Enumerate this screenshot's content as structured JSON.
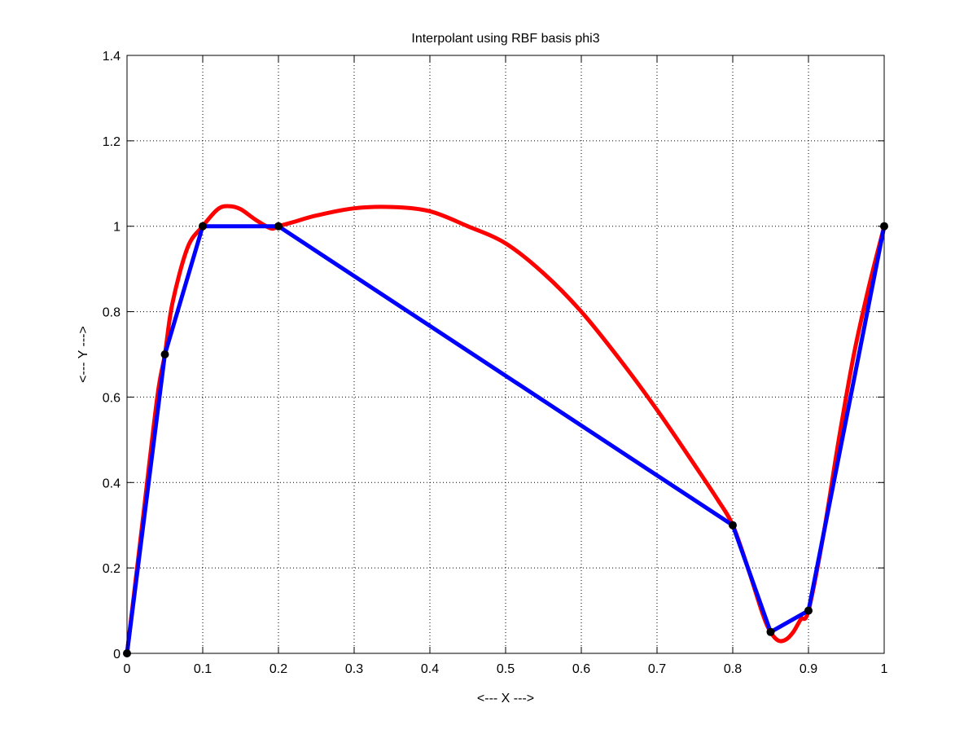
{
  "chart_data": {
    "type": "line",
    "title": "Interpolant using RBF basis phi3",
    "xlabel": "<--- X --->",
    "ylabel": "<--- Y --->",
    "xlim": [
      0,
      1
    ],
    "ylim": [
      0,
      1.4
    ],
    "xticks": [
      0,
      0.1,
      0.2,
      0.3,
      0.4,
      0.5,
      0.6,
      0.7,
      0.8,
      0.9,
      1
    ],
    "xtick_labels": [
      "0",
      "0.1",
      "0.2",
      "0.3",
      "0.4",
      "0.5",
      "0.6",
      "0.7",
      "0.8",
      "0.9",
      "1"
    ],
    "yticks": [
      0,
      0.2,
      0.4,
      0.6,
      0.8,
      1,
      1.2,
      1.4
    ],
    "ytick_labels": [
      "0",
      "0.2",
      "0.4",
      "0.6",
      "0.8",
      "1",
      "1.2",
      "1.4"
    ],
    "grid": true,
    "series": [
      {
        "style": "interpolant-curve",
        "color": "#ff0000",
        "x": [
          0,
          0.02,
          0.04,
          0.05,
          0.06,
          0.08,
          0.1,
          0.12,
          0.135,
          0.15,
          0.17,
          0.19,
          0.2,
          0.22,
          0.25,
          0.3,
          0.35,
          0.4,
          0.45,
          0.5,
          0.55,
          0.6,
          0.65,
          0.7,
          0.75,
          0.78,
          0.8,
          0.82,
          0.84,
          0.85,
          0.86,
          0.87,
          0.88,
          0.89,
          0.9,
          0.92,
          0.94,
          0.96,
          0.98,
          1
        ],
        "y": [
          0,
          0.3,
          0.6,
          0.7,
          0.82,
          0.95,
          1.0,
          1.04,
          1.047,
          1.04,
          1.015,
          0.995,
          1.0,
          1.01,
          1.025,
          1.042,
          1.045,
          1.035,
          1.0,
          0.96,
          0.89,
          0.8,
          0.69,
          0.57,
          0.44,
          0.36,
          0.3,
          0.2,
          0.09,
          0.05,
          0.03,
          0.032,
          0.05,
          0.08,
          0.1,
          0.28,
          0.5,
          0.7,
          0.86,
          1.0
        ]
      },
      {
        "style": "piecewise-linear",
        "color": "#0000ff",
        "x": [
          0,
          0.05,
          0.1,
          0.2,
          0.8,
          0.85,
          0.9,
          1
        ],
        "y": [
          0,
          0.7,
          1,
          1,
          0.3,
          0.05,
          0.1,
          1
        ]
      }
    ],
    "points": {
      "color": "#000000",
      "x": [
        0,
        0.05,
        0.1,
        0.2,
        0.8,
        0.85,
        0.9,
        1
      ],
      "y": [
        0,
        0.7,
        1,
        1,
        0.3,
        0.05,
        0.1,
        1
      ]
    }
  }
}
